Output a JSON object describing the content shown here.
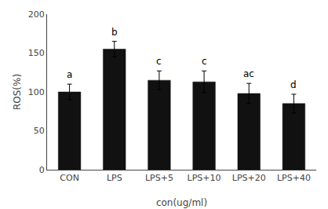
{
  "chart_data": {
    "type": "bar",
    "categories": [
      "CON",
      "LPS",
      "LPS+5",
      "LPS+10",
      "LPS+20",
      "LPS+40"
    ],
    "values": [
      100,
      155,
      115,
      113,
      98,
      85
    ],
    "errors": [
      10,
      10,
      12,
      14,
      13,
      12
    ],
    "letters": [
      "a",
      "b",
      "c",
      "c",
      "ac",
      "d"
    ],
    "color": "#111111",
    "xlabel": "con(ug/ml)",
    "ylabel": "ROS(%)",
    "ylim": [
      0,
      200
    ],
    "yticks": [
      0,
      50,
      100,
      150,
      200
    ],
    "grid": false
  }
}
